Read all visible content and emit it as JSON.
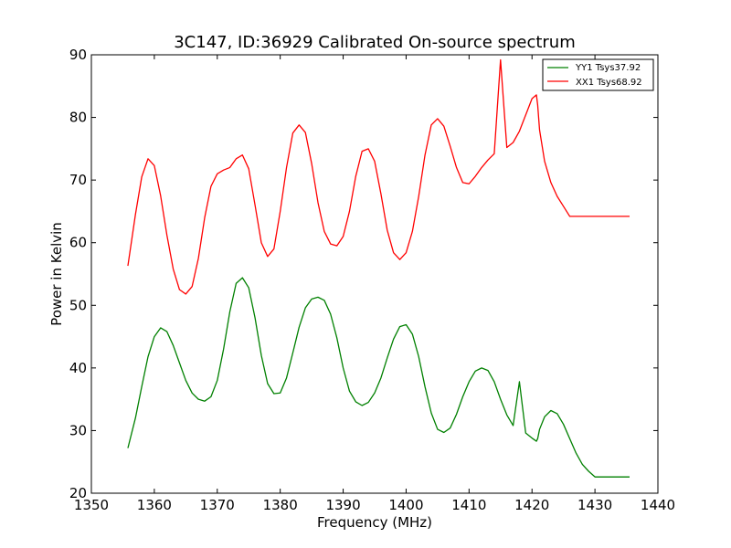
{
  "chart_data": {
    "type": "line",
    "title": "3C147, ID:36929 Calibrated On-source spectrum",
    "xlabel": "Frequency (MHz)",
    "ylabel": "Power in Kelvin",
    "xlim": [
      1350,
      1440
    ],
    "ylim": [
      20,
      90
    ],
    "xticks": [
      1350,
      1360,
      1370,
      1380,
      1390,
      1400,
      1410,
      1420,
      1430,
      1440
    ],
    "yticks": [
      20,
      30,
      40,
      50,
      60,
      70,
      80,
      90
    ],
    "xtick_labels": [
      "1350",
      "1360",
      "1370",
      "1380",
      "1390",
      "1400",
      "1410",
      "1420",
      "1430",
      "1440"
    ],
    "ytick_labels": [
      "20",
      "30",
      "40",
      "50",
      "60",
      "70",
      "80",
      "90"
    ],
    "grid": false,
    "legend_position": "top-right",
    "series": [
      {
        "name": "YY1 Tsys37.92",
        "color": "#008000",
        "x": [
          1355.8,
          1357,
          1358,
          1359,
          1360,
          1361,
          1362,
          1363,
          1364,
          1365,
          1366,
          1367,
          1368,
          1369,
          1370,
          1371,
          1372,
          1373,
          1374,
          1375,
          1376,
          1377,
          1378,
          1379,
          1380,
          1381,
          1382,
          1383,
          1384,
          1385,
          1386,
          1387,
          1388,
          1389,
          1390,
          1391,
          1392,
          1393,
          1394,
          1395,
          1396,
          1397,
          1398,
          1399,
          1400,
          1401,
          1402,
          1403,
          1404,
          1405,
          1406,
          1407,
          1408,
          1409,
          1410,
          1411,
          1412,
          1413,
          1414,
          1415,
          1416,
          1417,
          1418,
          1419,
          1420,
          1420.7,
          1420.9,
          1421.2,
          1422,
          1423,
          1424,
          1425,
          1426,
          1427,
          1428,
          1429,
          1430,
          1431,
          1432,
          1433,
          1434,
          1435.5
        ],
        "y": [
          27.2,
          32.0,
          37.0,
          41.8,
          45.0,
          46.4,
          45.8,
          43.6,
          40.8,
          38.0,
          36.0,
          35.0,
          34.7,
          35.4,
          38.0,
          43.0,
          49.0,
          53.5,
          54.4,
          52.8,
          48.0,
          42.0,
          37.5,
          35.9,
          36.0,
          38.4,
          42.4,
          46.5,
          49.6,
          51.0,
          51.3,
          50.8,
          48.6,
          44.8,
          40.0,
          36.3,
          34.6,
          34.0,
          34.5,
          36.0,
          38.4,
          41.6,
          44.6,
          46.6,
          46.9,
          45.4,
          41.8,
          37.0,
          32.8,
          30.2,
          29.7,
          30.4,
          32.6,
          35.4,
          37.8,
          39.5,
          40.0,
          39.6,
          37.8,
          35.0,
          32.5,
          30.8,
          37.8,
          29.6,
          28.8,
          28.3,
          28.7,
          30.2,
          32.2,
          33.2,
          32.7,
          31.0,
          28.7,
          26.4,
          24.6,
          23.5,
          22.6,
          22.6,
          22.6,
          22.6,
          22.6,
          22.6
        ],
        "x_override": [
          1355.8,
          1357,
          1358,
          1359,
          1360,
          1361,
          1362,
          1363,
          1364,
          1365,
          1366,
          1367,
          1368,
          1369,
          1370,
          1371,
          1372,
          1373,
          1374,
          1375,
          1376,
          1377,
          1378,
          1379,
          1380,
          1381,
          1382,
          1383,
          1384,
          1385,
          1386,
          1387,
          1388,
          1389,
          1390,
          1391,
          1392,
          1393,
          1394,
          1395,
          1396,
          1397,
          1398,
          1399,
          1400,
          1401,
          1402,
          1403,
          1404,
          1405,
          1406,
          1407,
          1408,
          1409,
          1410,
          1411,
          1412,
          1413,
          1414,
          1415,
          1416,
          1417,
          1418,
          1419,
          1420,
          1420.7,
          1420.9,
          1421.2,
          1422,
          1423,
          1424,
          1425,
          1426,
          1427,
          1428,
          1429,
          1430,
          1431,
          1432,
          1433,
          1434,
          1435.5
        ]
      },
      {
        "name": "XX1 Tsys68.92",
        "color": "#ff0000",
        "x": [
          1355.8,
          1357,
          1358,
          1359,
          1360,
          1361,
          1362,
          1363,
          1364,
          1365,
          1366,
          1367,
          1368,
          1369,
          1370,
          1371,
          1372,
          1373,
          1374,
          1375,
          1376,
          1377,
          1378,
          1379,
          1380,
          1381,
          1382,
          1383,
          1384,
          1385,
          1386,
          1387,
          1388,
          1389,
          1390,
          1391,
          1392,
          1393,
          1394,
          1395,
          1396,
          1397,
          1398,
          1399,
          1400,
          1401,
          1402,
          1403,
          1404,
          1405,
          1406,
          1407,
          1408,
          1409,
          1410,
          1411,
          1412,
          1413,
          1414,
          1415,
          1416,
          1417,
          1418,
          1419,
          1420,
          1420.7,
          1420.9,
          1421.2,
          1422,
          1423,
          1424,
          1425,
          1426,
          1427,
          1428,
          1429,
          1430,
          1431,
          1432,
          1433,
          1434,
          1435.5
        ],
        "y": [
          56.3,
          64.5,
          70.5,
          73.4,
          72.3,
          67.5,
          61.2,
          55.8,
          52.5,
          51.8,
          53.0,
          57.5,
          64.0,
          69.0,
          71.0,
          71.6,
          72.0,
          73.4,
          74.0,
          71.8,
          66.0,
          60.0,
          57.8,
          59.0,
          65.0,
          72.0,
          77.5,
          78.8,
          77.6,
          72.6,
          66.4,
          61.8,
          59.8,
          59.5,
          61.0,
          65.0,
          70.6,
          74.6,
          75.0,
          73.0,
          67.8,
          62.0,
          58.4,
          57.3,
          58.4,
          61.8,
          67.4,
          74.0,
          78.8,
          79.8,
          78.6,
          75.4,
          72.0,
          69.6,
          69.4,
          70.6,
          72.0,
          73.2,
          74.2,
          89.2,
          75.2,
          76.0,
          77.8,
          80.4,
          83.0,
          83.6,
          82.0,
          78.0,
          73.0,
          69.6,
          67.4,
          65.8,
          64.2,
          64.2,
          64.2,
          64.2,
          64.2,
          64.2,
          64.2,
          64.2,
          64.2,
          64.2
        ]
      }
    ]
  }
}
